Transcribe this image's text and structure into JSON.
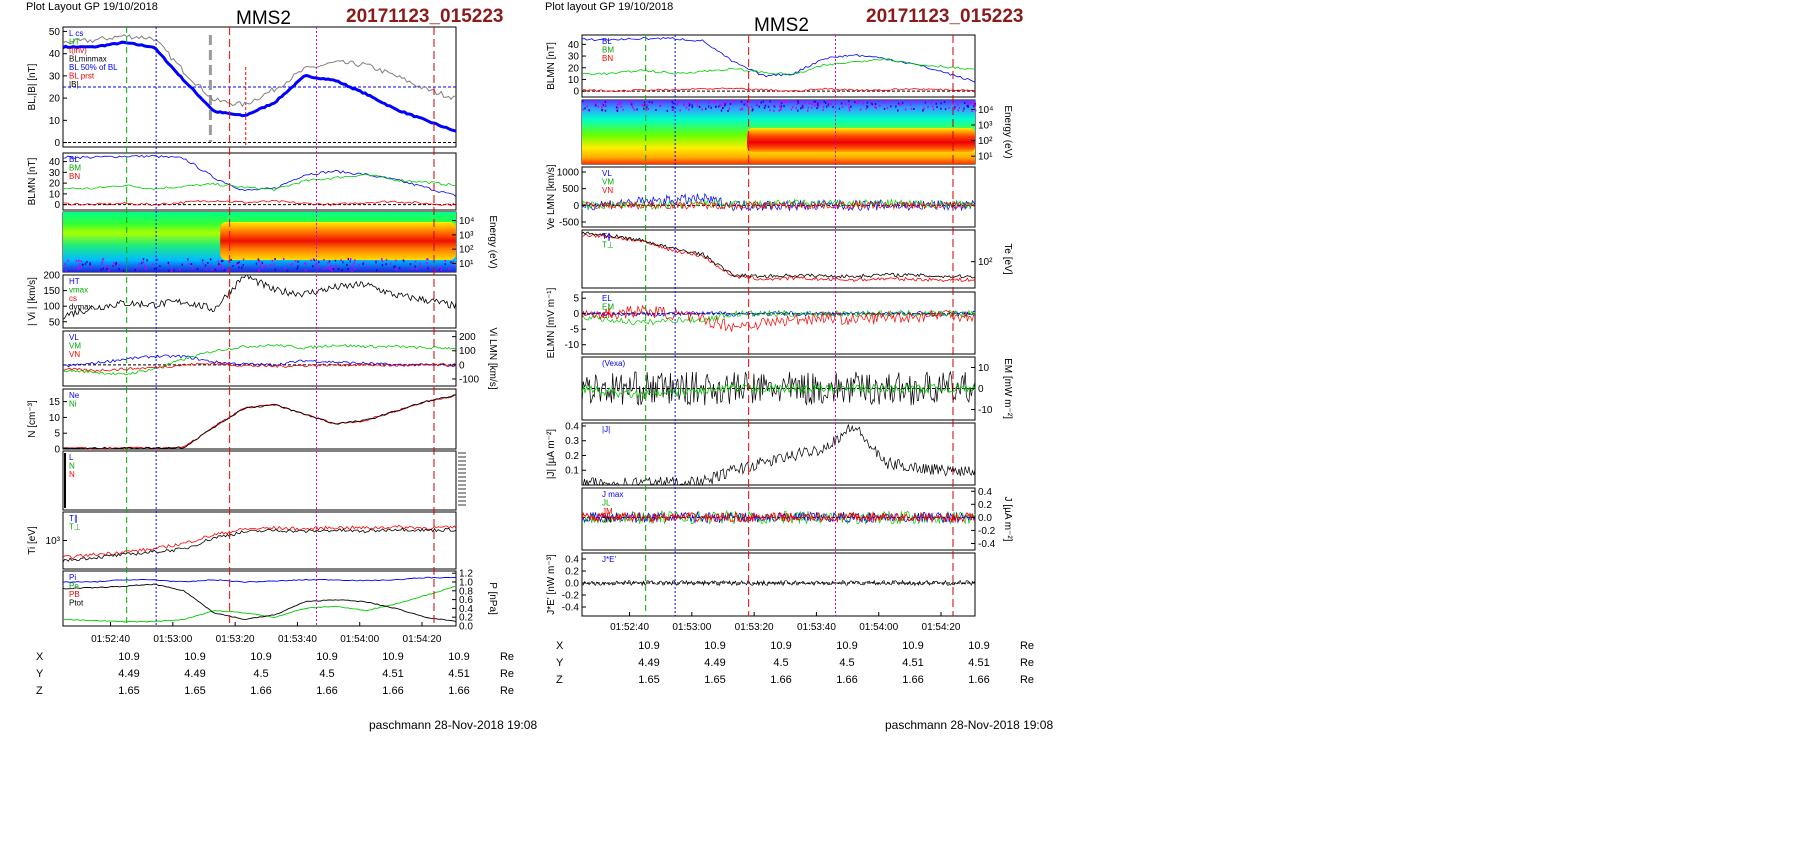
{
  "left": {
    "layout_label": "Plot Layout GP 19/10/2018",
    "spacecraft": "MMS2",
    "event_id": "20171123_015223",
    "footer": "paschmann 28-Nov-2018 19:08",
    "time_ticks": [
      "01:52:40",
      "01:53:00",
      "01:53:20",
      "01:53:40",
      "01:54:00",
      "01:54:20"
    ],
    "ephemeris": {
      "units": "Re",
      "rows": [
        {
          "label": "X",
          "values": [
            "10.9",
            "10.9",
            "10.9",
            "10.9",
            "10.9",
            "10.9"
          ]
        },
        {
          "label": "Y",
          "values": [
            "4.49",
            "4.49",
            "4.5",
            "4.5",
            "4.51",
            "4.51"
          ]
        },
        {
          "label": "Z",
          "values": [
            "1.65",
            "1.65",
            "1.66",
            "1.66",
            "1.66",
            "1.66"
          ]
        }
      ]
    },
    "panels": [
      {
        "id": "bl",
        "ylabel": "BL,|B| [nT]",
        "ticks": [
          "0",
          "10",
          "20",
          "30",
          "40",
          "50"
        ],
        "legend": [
          "L cs",
          "HT",
          "t(inv)",
          "BLminmax",
          "BL 50% of BL",
          "BL prst",
          "|B|"
        ]
      },
      {
        "id": "blmn",
        "ylabel": "BLMN [nT]",
        "ticks": [
          "0",
          "10",
          "20",
          "30",
          "40"
        ],
        "legend": [
          "BL",
          "BM",
          "BN"
        ]
      },
      {
        "id": "ispec",
        "ylabel": "Energy (eV)",
        "ticks": [
          "10¹",
          "10²",
          "10³",
          "10⁴"
        ]
      },
      {
        "id": "vi",
        "ylabel": "| Vi | [km/s]",
        "ticks": [
          "50",
          "100",
          "150",
          "200"
        ],
        "legend": [
          "HT",
          "vmax",
          "cs",
          "dvmax"
        ]
      },
      {
        "id": "vilmn",
        "ylabel": "Vi LMN [km/s]",
        "ticks": [
          "-100",
          "0",
          "100",
          "200"
        ],
        "legend": [
          "VL",
          "VM",
          "VN"
        ]
      },
      {
        "id": "n",
        "ylabel": "N [cm⁻³]",
        "ticks": [
          "0",
          "5",
          "10",
          "15"
        ],
        "legend": [
          "Ne",
          "Ni"
        ]
      },
      {
        "id": "lnn",
        "ylabel": "",
        "ticks": [],
        "legend": [
          "L",
          "N",
          "N"
        ]
      },
      {
        "id": "ti",
        "ylabel": "Ti [eV]",
        "ticks": [
          "10³"
        ],
        "legend": [
          "T∥",
          "T⊥"
        ]
      },
      {
        "id": "p",
        "ylabel": "P [nPa]",
        "ticks": [
          "0.0",
          "0.2",
          "0.4",
          "0.6",
          "0.8",
          "1.0",
          "1.2"
        ],
        "legend": [
          "Pi",
          "Pe",
          "PB",
          "Ptot"
        ]
      }
    ]
  },
  "right": {
    "layout_label": "Plot layout GP 19/10/2018",
    "spacecraft": "MMS2",
    "event_id": "20171123_015223",
    "footer": "paschmann 28-Nov-2018 19:08",
    "time_ticks": [
      "01:52:40",
      "01:53:00",
      "01:53:20",
      "01:53:40",
      "01:54:00",
      "01:54:20"
    ],
    "ephemeris": {
      "units": "Re",
      "rows": [
        {
          "label": "X",
          "values": [
            "10.9",
            "10.9",
            "10.9",
            "10.9",
            "10.9",
            "10.9"
          ]
        },
        {
          "label": "Y",
          "values": [
            "4.49",
            "4.49",
            "4.5",
            "4.5",
            "4.51",
            "4.51"
          ]
        },
        {
          "label": "Z",
          "values": [
            "1.65",
            "1.65",
            "1.66",
            "1.66",
            "1.66",
            "1.66"
          ]
        }
      ]
    },
    "panels": [
      {
        "id": "blmn",
        "ylabel": "BLMN [nT]",
        "ticks": [
          "0",
          "10",
          "20",
          "30",
          "40"
        ],
        "legend": [
          "BL",
          "BM",
          "BN"
        ]
      },
      {
        "id": "espec",
        "ylabel": "Energy (eV)",
        "ticks": [
          "10¹",
          "10²",
          "10³",
          "10⁴"
        ]
      },
      {
        "id": "velmn",
        "ylabel": "Ve LMN [km/s]",
        "ticks": [
          "-500",
          "0",
          "500",
          "1000"
        ],
        "legend": [
          "VL",
          "VM",
          "VN"
        ]
      },
      {
        "id": "te",
        "ylabel": "Te [eV]",
        "ticks": [
          "10²"
        ],
        "legend": [
          "T∥",
          "T⊥"
        ]
      },
      {
        "id": "elmn",
        "ylabel": "ELMN [mV m⁻¹]",
        "ticks": [
          "-10",
          "-5",
          "0",
          "5"
        ],
        "legend": [
          "EL",
          "EM",
          "EN"
        ]
      },
      {
        "id": "em",
        "ylabel": "EM [mW m⁻²]",
        "ticks": [
          "-10",
          "0",
          "10"
        ],
        "legend": [
          "(Vexa)"
        ]
      },
      {
        "id": "jmag",
        "ylabel": "|J| [µA m⁻²]",
        "ticks": [
          "0.1",
          "0.2",
          "0.3",
          "0.4"
        ],
        "legend": [
          "|J|"
        ]
      },
      {
        "id": "jlmn",
        "ylabel": "J [µA m⁻²]",
        "ticks": [
          "-0.4",
          "-0.2",
          "0.0",
          "0.2",
          "0.4"
        ],
        "legend": [
          "J max",
          "JL",
          "JM",
          "JN"
        ]
      },
      {
        "id": "je",
        "ylabel": "J*E' [nW m⁻³]",
        "ticks": [
          "-0.4",
          "-0.2",
          "0.0",
          "0.2",
          "0.4"
        ],
        "legend": [
          "J*E'"
        ]
      }
    ]
  },
  "chart_data": [
    {
      "type": "line",
      "title": "MMS2 20171123_015223",
      "x_ticks": [
        "01:52:40",
        "01:53:00",
        "01:53:20",
        "01:53:40",
        "01:54:00",
        "01:54:20"
      ],
      "xlim": [
        "01:52:20",
        "01:54:23"
      ],
      "panels": [
        {
          "ylabel": "BL,|B| [nT]",
          "ylim": [
            -2,
            52
          ],
          "series": [
            {
              "name": "BL prst",
              "color": "#0000ff",
              "x_frac": [
                0,
                0.15,
                0.3,
                0.36,
                0.42,
                0.5,
                0.56,
                0.62,
                0.7,
                0.76,
                0.82,
                0.88,
                0.94,
                1.0
              ],
              "values": [
                43,
                43,
                45,
                43,
                28,
                14,
                12,
                18,
                30,
                28,
                22,
                15,
                10,
                5
              ]
            },
            {
              "name": "|B|",
              "color": "#808080",
              "x_frac": [
                0,
                0.15,
                0.3,
                0.36,
                0.42,
                0.5,
                0.56,
                0.62,
                0.7,
                0.76,
                0.82,
                0.88,
                0.94,
                1.0
              ],
              "values": [
                45,
                46,
                48,
                47,
                32,
                19,
                17,
                24,
                33,
                36,
                35,
                30,
                24,
                20
              ]
            }
          ]
        },
        {
          "ylabel": "BLMN [nT]",
          "ylim": [
            -5,
            48
          ],
          "series": [
            {
              "name": "BL",
              "color": "#0000ff",
              "values": [
                44,
                44,
                45,
                45,
                43,
                25,
                13,
                15,
                28,
                31,
                28,
                23,
                16,
                8
              ]
            },
            {
              "name": "BM",
              "color": "#00cc00",
              "values": [
                15,
                15,
                18,
                15,
                17,
                19,
                16,
                14,
                22,
                25,
                28,
                23,
                21,
                18
              ]
            },
            {
              "name": "BN",
              "color": "#ff0000",
              "values": [
                1,
                0,
                1,
                0,
                2,
                4,
                2,
                3,
                1,
                0,
                2,
                3,
                1,
                0
              ]
            }
          ]
        },
        {
          "ylabel": "| Vi | [km/s]",
          "ylim": [
            30,
            200
          ],
          "series": [
            {
              "name": "|Vi|",
              "color": "#000000",
              "values": [
                70,
                95,
                110,
                105,
                115,
                90,
                200,
                150,
                140,
                160,
                170,
                135,
                120,
                100
              ]
            }
          ]
        },
        {
          "ylabel": "Vi LMN [km/s]",
          "ylim": [
            -150,
            240
          ],
          "series": [
            {
              "name": "VL",
              "color": "#0000ff",
              "values": [
                -10,
                10,
                40,
                60,
                60,
                20,
                5,
                0,
                30,
                20,
                10,
                0,
                0,
                -5
              ]
            },
            {
              "name": "VM",
              "color": "#00cc00",
              "values": [
                -40,
                -50,
                -70,
                -30,
                40,
                100,
                130,
                140,
                120,
                140,
                130,
                130,
                120,
                120
              ]
            },
            {
              "name": "VN",
              "color": "#ff0000",
              "values": [
                -30,
                -40,
                -30,
                -20,
                0,
                10,
                -5,
                -10,
                -5,
                0,
                0,
                -5,
                0,
                0
              ]
            }
          ]
        },
        {
          "ylabel": "N [cm⁻³]",
          "ylim": [
            0,
            19
          ],
          "series": [
            {
              "name": "Ne",
              "color": "#ff0000",
              "values": [
                0.2,
                0.2,
                0.3,
                0.3,
                0.5,
                7,
                13,
                14,
                11,
                8,
                9,
                12,
                15,
                17
              ]
            },
            {
              "name": "Ni",
              "color": "#000000",
              "values": [
                0.2,
                0.2,
                0.3,
                0.3,
                0.5,
                7,
                13,
                14,
                11,
                8,
                9,
                12,
                15,
                17
              ]
            }
          ]
        },
        {
          "ylabel": "P [nPa]",
          "ylim": [
            0,
            1.25
          ],
          "series": [
            {
              "name": "Pi",
              "color": "#00cc00",
              "values": [
                0.15,
                0.12,
                0.1,
                0.1,
                0.15,
                0.35,
                0.3,
                0.2,
                0.4,
                0.45,
                0.35,
                0.5,
                0.7,
                0.9
              ]
            },
            {
              "name": "PB",
              "color": "#000000",
              "values": [
                0.85,
                0.87,
                0.9,
                0.95,
                0.8,
                0.3,
                0.15,
                0.25,
                0.55,
                0.6,
                0.55,
                0.4,
                0.2,
                0.1
              ]
            },
            {
              "name": "Ptot",
              "color": "#0000ff",
              "values": [
                1.0,
                1.0,
                1.05,
                1.05,
                1.0,
                1.05,
                1.0,
                1.02,
                1.05,
                1.05,
                1.03,
                1.05,
                1.1,
                1.1
              ]
            }
          ]
        }
      ]
    },
    {
      "type": "line",
      "title": "MMS2 20171123_015223",
      "x_ticks": [
        "01:52:40",
        "01:53:00",
        "01:53:20",
        "01:53:40",
        "01:54:00",
        "01:54:20"
      ],
      "xlim": [
        "01:52:20",
        "01:54:23"
      ],
      "panels": [
        {
          "ylabel": "BLMN [nT]",
          "ylim": [
            -5,
            48
          ],
          "series": [
            {
              "name": "BL",
              "color": "#0000ff",
              "values": [
                44,
                44,
                45,
                45,
                43,
                25,
                13,
                15,
                28,
                31,
                28,
                23,
                16,
                8
              ]
            },
            {
              "name": "BM",
              "color": "#00cc00",
              "values": [
                15,
                15,
                18,
                15,
                17,
                19,
                16,
                14,
                22,
                25,
                28,
                23,
                21,
                18
              ]
            }
          ]
        },
        {
          "ylabel": "Te [eV]",
          "series": [
            {
              "name": "T∥",
              "color": "#ff0000",
              "values": [
                250,
                230,
                200,
                150,
                120,
                60,
                50,
                52,
                50,
                48,
                50,
                50,
                48,
                46
              ]
            },
            {
              "name": "T⊥",
              "color": "#000000",
              "values": [
                260,
                240,
                210,
                160,
                130,
                60,
                55,
                58,
                56,
                54,
                60,
                58,
                55,
                54
              ]
            }
          ]
        },
        {
          "ylabel": "|J| [µA m⁻²]",
          "ylim": [
            0,
            0.42
          ],
          "series": [
            {
              "name": "|J|",
              "color": "#000000",
              "values": [
                0.01,
                0.01,
                0.02,
                0.02,
                0.02,
                0.1,
                0.15,
                0.2,
                0.25,
                0.4,
                0.15,
                0.12,
                0.1,
                0.1
              ]
            }
          ]
        }
      ]
    }
  ]
}
